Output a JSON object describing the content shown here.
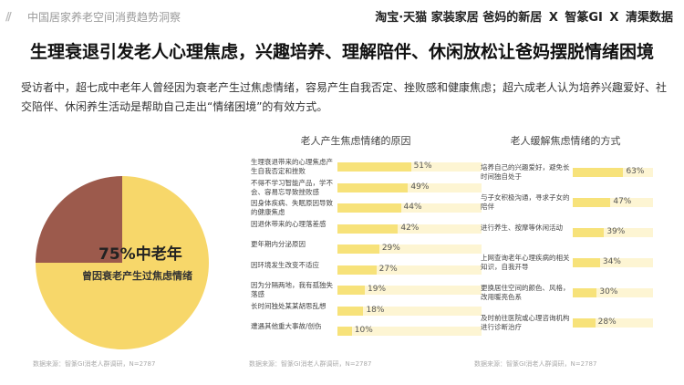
{
  "header": {
    "report_title": "中国居家养老空间消费趋势洞察",
    "logos": [
      "淘宝·天猫",
      "家装家居",
      "爸妈的新居",
      "智篆GI",
      "清渠数据"
    ]
  },
  "headline": "生理衰退引发老人心理焦虑，兴趣培养、理解陪伴、休闲放松让爸妈摆脱情绪困境",
  "intro": "受访者中，超七成中老年人曾经因为衰老产生过焦虑情绪，容易产生自我否定、挫败感和健康焦虑；超六成老人认为培养兴趣爱好、社交陪伴、休闲养生活动是帮助自己走出“情绪困境”的有效方式。",
  "pie": {
    "big_label": "75%中老年",
    "small_label": "曾因衰老产生过焦虑情绪",
    "colors": {
      "highlight": "#f7d76a",
      "rest": "#9c5a4c"
    }
  },
  "sources": {
    "left": "数据来源：智篆GI消老人群调研，N=2787",
    "middle": "数据来源：智篆GI消老人群调研，N=2787",
    "right": "数据来源：智篆GI消老人群调研，N=2787"
  },
  "chart_data": [
    {
      "type": "pie",
      "title": "",
      "slices": [
        {
          "label": "75%中老年 曾因衰老产生过焦虑情绪",
          "value": 75
        },
        {
          "label": "",
          "value": 25
        }
      ]
    },
    {
      "type": "bar",
      "title": "老人产生焦虑情绪的原因",
      "categories": [
        "生理衰退带来的心理焦虑产生自我否定和挫败",
        "不得不学习智能产品，学不会、容易忘导致挫败感",
        "因身体疾病、失眠原因导致的健康焦虑",
        "因退休带来的心理落差感",
        "更年期内分泌原因",
        "因环境发生改变不适应",
        "因为分隔两地，我有孤独失落感",
        "长时间独处某某胡思乱想",
        "遭遇其他重大事故/创伤"
      ],
      "values": [
        51,
        49,
        44,
        42,
        29,
        27,
        19,
        18,
        10
      ],
      "value_labels": [
        "51%",
        "49%",
        "44%",
        "42%",
        "29%",
        "27%",
        "19%",
        "18%",
        "10%"
      ],
      "xlim": [
        0,
        100
      ]
    },
    {
      "type": "bar",
      "title": "老人缓解焦虑情绪的方式",
      "categories": [
        "培养自己的兴趣爱好，避免长时间独自处于",
        "与子女积极沟通，寻求子女的陪伴",
        "进行养生、按摩等休闲活动",
        "上网查询老年心理疾病的相关知识，自我开导",
        "更换居住空间的颜色、风格，改用暖亮色系",
        "及时前往医院或心理咨询机构进行诊断治疗"
      ],
      "values": [
        63,
        47,
        39,
        34,
        30,
        28
      ],
      "value_labels": [
        "63%",
        "47%",
        "39%",
        "34%",
        "30%",
        "28%"
      ],
      "xlim": [
        0,
        100
      ]
    }
  ]
}
